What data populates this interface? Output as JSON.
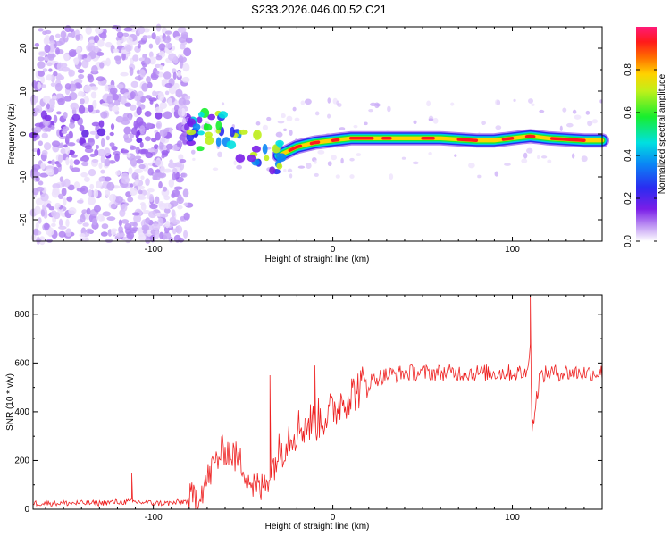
{
  "title": "S233.2026.046.00.52.C21",
  "colors": {
    "snr_line": "#ee2222",
    "frame": "#000000"
  },
  "chart_data": [
    {
      "type": "heatmap",
      "name": "spectrogram",
      "xlabel": "Height of straight line (km)",
      "ylabel": "Frequency (Hz)",
      "xlim": [
        -167,
        150
      ],
      "ylim": [
        -25,
        25
      ],
      "xticks": [
        -100,
        0,
        100
      ],
      "xtick_labels": [
        "-100",
        "0",
        "100"
      ],
      "yticks": [
        -20,
        -10,
        0,
        10,
        20
      ],
      "ytick_labels": [
        "-20",
        "-10",
        "0",
        "10",
        "20"
      ],
      "colorbar": {
        "label": "Normalized spectral amplitude",
        "range": [
          0,
          1
        ],
        "ticks": [
          0.0,
          0.2,
          0.4,
          0.6,
          0.8
        ],
        "tick_labels": [
          "0.0",
          "0.2",
          "0.4",
          "0.6",
          "0.8"
        ],
        "colormap": "rainbow (white-violet-blue-cyan-green-yellow-red-magenta)"
      },
      "dominant_frequency_track": {
        "x": [
          -80,
          -70,
          -60,
          -50,
          -40,
          -30,
          -20,
          -10,
          0,
          10,
          20,
          40,
          60,
          80,
          90,
          100,
          110,
          120,
          140,
          150
        ],
        "y": [
          -1,
          1.5,
          2,
          -3,
          -4,
          -5,
          -3,
          -2,
          -1.5,
          -1,
          -1,
          -1,
          -1,
          -1.5,
          -1.5,
          -1,
          -0.5,
          -1,
          -1.5,
          -1.5
        ]
      }
    },
    {
      "type": "line",
      "name": "snr",
      "xlabel": "Height of straight line (km)",
      "ylabel": "SNR (10 * v/v)",
      "xlim": [
        -167,
        150
      ],
      "ylim": [
        0,
        880
      ],
      "xticks": [
        -100,
        0,
        100
      ],
      "xtick_labels": [
        "-100",
        "0",
        "100"
      ],
      "yticks": [
        0,
        200,
        400,
        600,
        800
      ],
      "ytick_labels": [
        "0",
        "200",
        "400",
        "600",
        "800"
      ],
      "series": [
        {
          "name": "SNR",
          "x": [
            -167,
            -150,
            -130,
            -120,
            -110,
            -100,
            -90,
            -80,
            -75,
            -70,
            -65,
            -60,
            -55,
            -50,
            -45,
            -40,
            -35,
            -30,
            -25,
            -20,
            -15,
            -10,
            -5,
            0,
            5,
            10,
            15,
            20,
            25,
            30,
            40,
            50,
            60,
            70,
            80,
            90,
            100,
            105,
            108,
            110,
            111,
            115,
            120,
            130,
            140,
            150
          ],
          "values": [
            25,
            25,
            25,
            30,
            30,
            25,
            25,
            35,
            60,
            120,
            200,
            250,
            220,
            180,
            100,
            80,
            150,
            230,
            300,
            330,
            350,
            360,
            380,
            400,
            450,
            470,
            500,
            520,
            540,
            550,
            560,
            560,
            560,
            560,
            560,
            560,
            560,
            560,
            550,
            700,
            320,
            540,
            560,
            560,
            560,
            560
          ],
          "peaks": {
            "x": [
              -112,
              -35,
              -10,
              110
            ],
            "values": [
              150,
              550,
              590,
              880
            ]
          }
        }
      ]
    }
  ]
}
